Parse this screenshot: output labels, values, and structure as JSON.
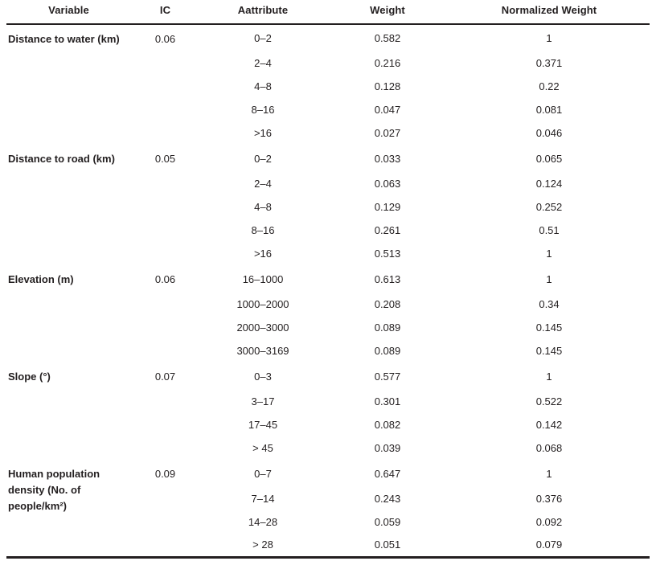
{
  "table": {
    "headers": {
      "variable": "Variable",
      "ic": "IC",
      "attribute": "Aattribute",
      "weight": "Weight",
      "normalized_weight": "Normalized Weight"
    },
    "text_color": "#231f20",
    "groups": [
      {
        "variable": "Distance to water (km)",
        "ic": "0.06",
        "rows": [
          {
            "attribute": "0–2",
            "weight": "0.582",
            "normalized_weight": "1"
          },
          {
            "attribute": "2–4",
            "weight": "0.216",
            "normalized_weight": "0.371"
          },
          {
            "attribute": "4–8",
            "weight": "0.128",
            "normalized_weight": "0.22"
          },
          {
            "attribute": "8–16",
            "weight": "0.047",
            "normalized_weight": "0.081"
          },
          {
            "attribute": ">16",
            "weight": "0.027",
            "normalized_weight": "0.046"
          }
        ]
      },
      {
        "variable": "Distance to road (km)",
        "ic": "0.05",
        "rows": [
          {
            "attribute": "0–2",
            "weight": "0.033",
            "normalized_weight": "0.065"
          },
          {
            "attribute": "2–4",
            "weight": "0.063",
            "normalized_weight": "0.124"
          },
          {
            "attribute": "4–8",
            "weight": "0.129",
            "normalized_weight": "0.252"
          },
          {
            "attribute": "8–16",
            "weight": "0.261",
            "normalized_weight": "0.51"
          },
          {
            "attribute": ">16",
            "weight": "0.513",
            "normalized_weight": "1"
          }
        ]
      },
      {
        "variable": "Elevation (m)",
        "ic": "0.06",
        "rows": [
          {
            "attribute": "16–1000",
            "weight": "0.613",
            "normalized_weight": "1"
          },
          {
            "attribute": "1000–2000",
            "weight": "0.208",
            "normalized_weight": "0.34"
          },
          {
            "attribute": "2000–3000",
            "weight": "0.089",
            "normalized_weight": "0.145"
          },
          {
            "attribute": "3000–3169",
            "weight": "0.089",
            "normalized_weight": "0.145"
          }
        ]
      },
      {
        "variable": "Slope (°)",
        "ic": "0.07",
        "rows": [
          {
            "attribute": "0–3",
            "weight": "0.577",
            "normalized_weight": "1"
          },
          {
            "attribute": "3–17",
            "weight": "0.301",
            "normalized_weight": "0.522"
          },
          {
            "attribute": "17–45",
            "weight": "0.082",
            "normalized_weight": "0.142"
          },
          {
            "attribute": "> 45",
            "weight": "0.039",
            "normalized_weight": "0.068"
          }
        ]
      },
      {
        "variable": "Human population density (No. of people/km²)",
        "ic": "0.09",
        "rows": [
          {
            "attribute": "0–7",
            "weight": "0.647",
            "normalized_weight": "1"
          },
          {
            "attribute": "7–14",
            "weight": "0.243",
            "normalized_weight": "0.376"
          },
          {
            "attribute": "14–28",
            "weight": "0.059",
            "normalized_weight": "0.092"
          },
          {
            "attribute": "> 28",
            "weight": "0.051",
            "normalized_weight": "0.079"
          }
        ]
      }
    ]
  }
}
